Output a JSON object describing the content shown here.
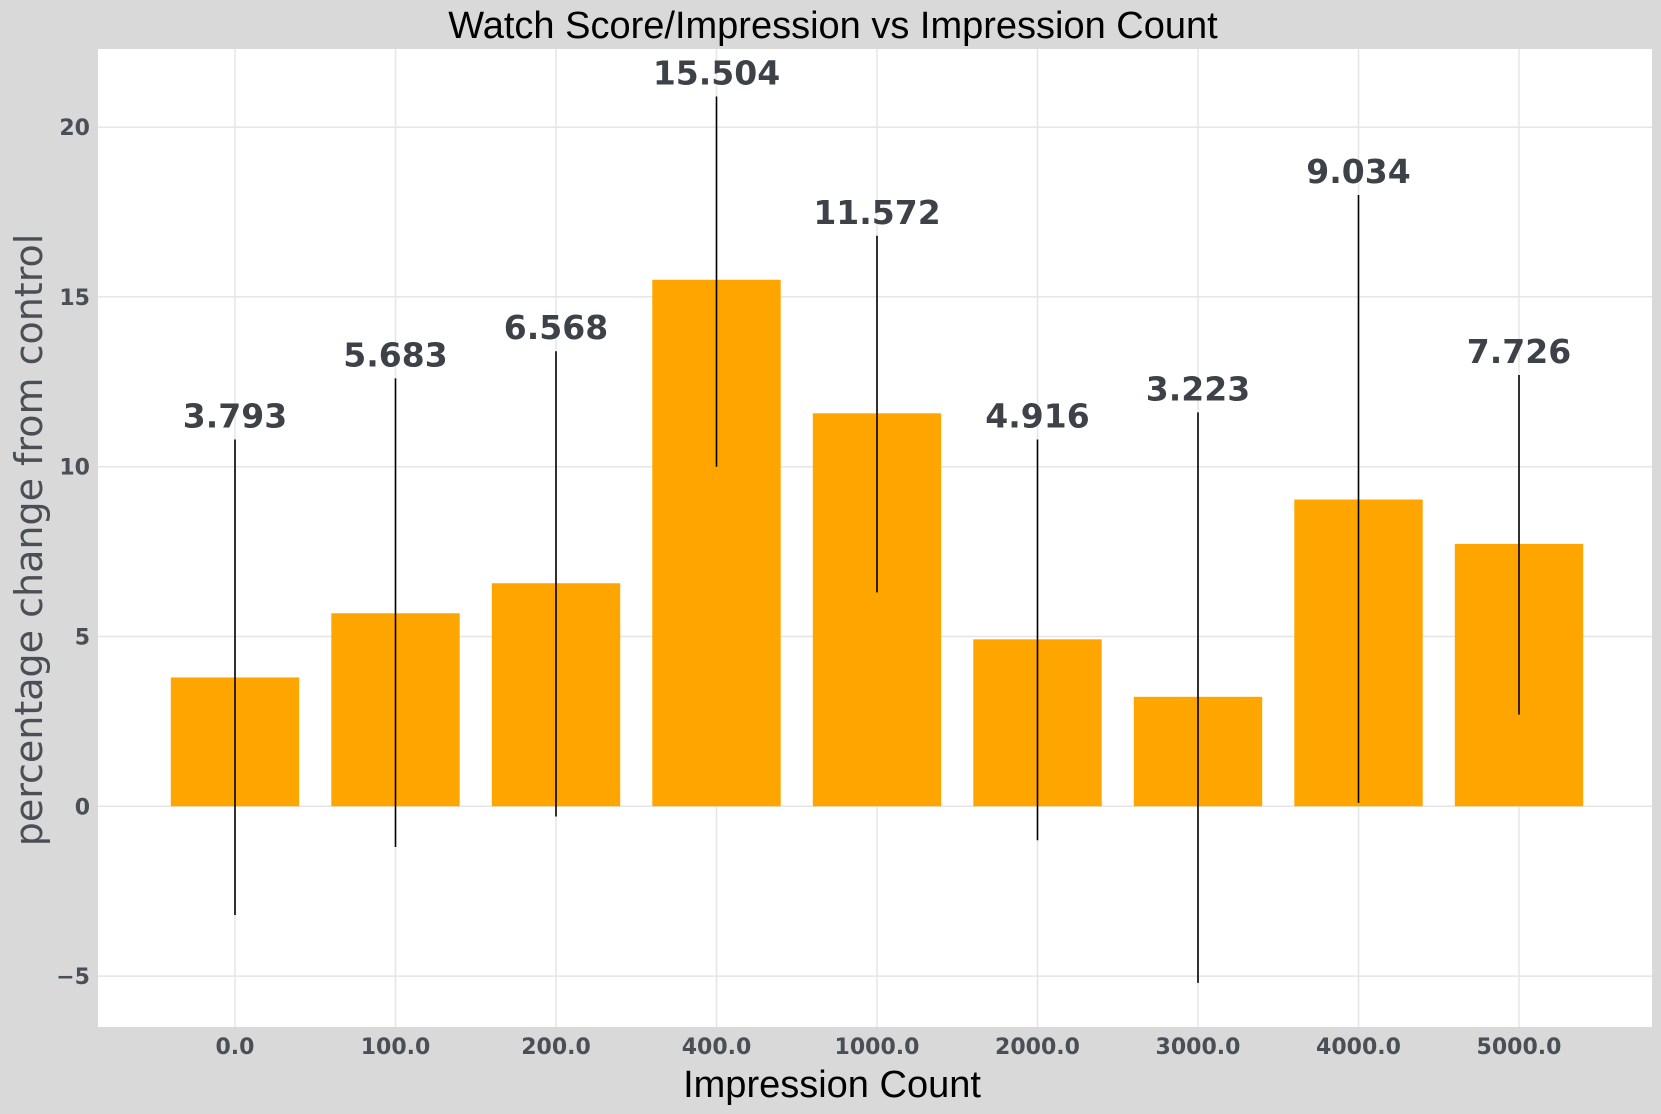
{
  "chart_data": {
    "type": "bar",
    "title": "Watch Score/Impression vs Impression Count",
    "xlabel": "Impression Count",
    "ylabel": "percentage change from control",
    "categories": [
      "0.0",
      "100.0",
      "200.0",
      "400.0",
      "1000.0",
      "2000.0",
      "3000.0",
      "4000.0",
      "5000.0"
    ],
    "values": [
      3.793,
      5.683,
      6.568,
      15.504,
      11.572,
      4.916,
      3.223,
      9.034,
      7.726
    ],
    "data_labels": [
      "3.793",
      "5.683",
      "6.568",
      "15.504",
      "11.572",
      "4.916",
      "3.223",
      "9.034",
      "7.726"
    ],
    "error_low": [
      -3.2,
      -1.2,
      -0.3,
      10.0,
      6.3,
      -1.0,
      -5.2,
      0.1,
      2.7
    ],
    "error_high": [
      10.8,
      12.6,
      13.4,
      20.9,
      16.8,
      10.8,
      11.6,
      18.0,
      12.7
    ],
    "ylim": [
      -6.5,
      22.3
    ],
    "yticks": [
      -5,
      0,
      5,
      10,
      15,
      20
    ],
    "ytick_labels": [
      "−5",
      "0",
      "5",
      "10",
      "15",
      "20"
    ],
    "grid": true,
    "colors": {
      "bar": "#ffa500",
      "error_bar": "#000000",
      "grid": "#e5e5e5",
      "plot_background": "#ffffff",
      "figure_background": "#d9d9d9",
      "text": "#4a4f57"
    }
  }
}
